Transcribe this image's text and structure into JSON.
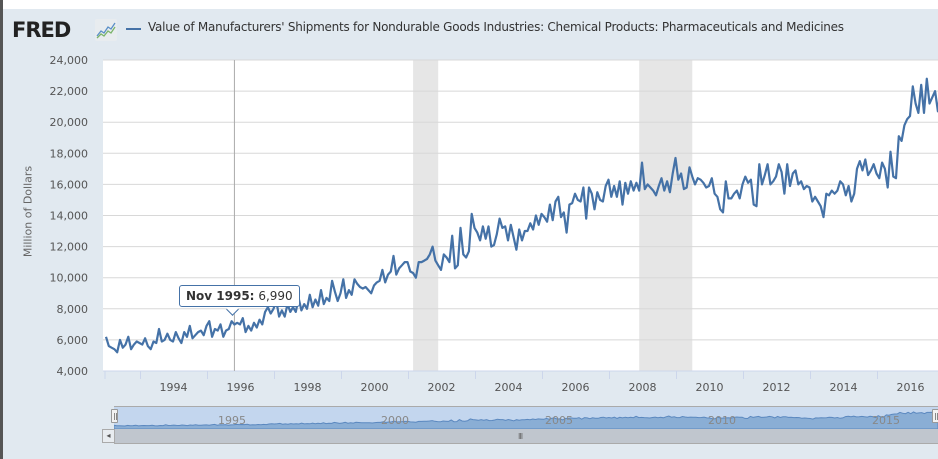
{
  "header": {
    "logo": "FRED",
    "logo_icon": "chart-line-icon",
    "series_title": "Value of Manufacturers' Shipments for Nondurable Goods Industries: Chemical Products: Pharmaceuticals and Medicines",
    "series_color": "#4572a7"
  },
  "tooltip": {
    "date": "Nov 1995:",
    "value": "6,990"
  },
  "navigator": {
    "labels": [
      "1995",
      "2000",
      "2005",
      "2010",
      "2015"
    ],
    "scroll_left_icon": "◂",
    "grip": "III"
  },
  "chart_data": {
    "type": "line",
    "title": "Value of Manufacturers' Shipments for Nondurable Goods Industries: Chemical Products: Pharmaceuticals and Medicines",
    "xlabel": "",
    "ylabel": "Million of Dollars",
    "ylim": [
      4000,
      24000
    ],
    "xlim": [
      "1992-01",
      "2016-10"
    ],
    "y_ticks": [
      "4,000",
      "6,000",
      "8,000",
      "10,000",
      "12,000",
      "14,000",
      "16,000",
      "18,000",
      "20,000",
      "22,000",
      "24,000"
    ],
    "y_tick_values": [
      4000,
      6000,
      8000,
      10000,
      12000,
      14000,
      16000,
      18000,
      20000,
      22000,
      24000
    ],
    "x_ticks": [
      "1994",
      "1996",
      "1998",
      "2000",
      "2002",
      "2004",
      "2006",
      "2008",
      "2010",
      "2012",
      "2014",
      "2016"
    ],
    "grid": true,
    "legend": "top-left",
    "recessions": [
      {
        "start": "2001-03",
        "end": "2001-11"
      },
      {
        "start": "2007-12",
        "end": "2009-06"
      }
    ],
    "highlight": {
      "date": "1995-11",
      "value": 6990
    },
    "start": "1992-01",
    "frequency": "monthly",
    "series": [
      {
        "name": "Pharmaceuticals and Medicines",
        "color": "#4572a7",
        "values": [
          6200,
          5600,
          5500,
          5400,
          5200,
          6000,
          5500,
          5700,
          6200,
          5400,
          5700,
          5900,
          5800,
          5700,
          6100,
          5600,
          5400,
          5900,
          5800,
          6700,
          5900,
          6000,
          6400,
          6000,
          5900,
          6500,
          6100,
          5800,
          6500,
          6200,
          6900,
          6100,
          6300,
          6500,
          6600,
          6300,
          6900,
          7200,
          6200,
          6700,
          6600,
          7000,
          6200,
          6600,
          6700,
          7200,
          6990,
          7100,
          7000,
          7400,
          6500,
          6900,
          6600,
          7100,
          6800,
          7300,
          7000,
          7800,
          8100,
          7700,
          8000,
          8500,
          7500,
          7900,
          7500,
          8300,
          7800,
          8100,
          7800,
          8700,
          7900,
          8300,
          8000,
          8900,
          8100,
          8600,
          8200,
          9200,
          8300,
          8700,
          8500,
          9800,
          9100,
          8500,
          9000,
          9900,
          8700,
          9200,
          8900,
          9900,
          9600,
          9400,
          9300,
          9400,
          9200,
          9000,
          9500,
          9700,
          9800,
          10500,
          9700,
          10200,
          10400,
          11400,
          10200,
          10600,
          10800,
          11000,
          11000,
          10400,
          10300,
          10000,
          11000,
          11000,
          11100,
          11200,
          11500,
          12000,
          11100,
          10800,
          10500,
          11500,
          11300,
          11000,
          12700,
          10600,
          10800,
          13200,
          11500,
          11300,
          11700,
          14100,
          13200,
          12900,
          12400,
          13300,
          12500,
          13300,
          12000,
          12100,
          12800,
          13800,
          13200,
          13300,
          12400,
          13400,
          12600,
          11800,
          13100,
          12400,
          13000,
          13000,
          13500,
          13100,
          14000,
          13400,
          14100,
          13900,
          13600,
          14700,
          13700,
          14900,
          15200,
          13900,
          14200,
          12900,
          14700,
          14800,
          15400,
          15000,
          14900,
          15800,
          13800,
          15800,
          15400,
          14400,
          15500,
          15000,
          14900,
          15900,
          16300,
          15200,
          15900,
          15200,
          16200,
          14700,
          16100,
          15400,
          16200,
          15600,
          16100,
          15600,
          17400,
          15700,
          16000,
          15800,
          15600,
          15300,
          15900,
          16400,
          15600,
          16200,
          15500,
          16700,
          17700,
          16300,
          16700,
          15700,
          15800,
          17100,
          16500,
          16000,
          16400,
          16300,
          16100,
          15800,
          15900,
          16400,
          15400,
          15200,
          14400,
          14200,
          16200,
          15100,
          15100,
          15400,
          15600,
          15100,
          16000,
          16500,
          16100,
          16300,
          14700,
          14600,
          17300,
          16000,
          16600,
          17300,
          16000,
          16200,
          16500,
          17300,
          16800,
          15400,
          17300,
          15900,
          16700,
          16900,
          16000,
          16200,
          15700,
          15900,
          15800,
          14900,
          15200,
          14900,
          14600,
          13900,
          15400,
          15300,
          15600,
          15400,
          15600,
          16200,
          16000,
          15300,
          15900,
          14900,
          15400,
          17000,
          17500,
          16900,
          17600,
          16600,
          16900,
          17300,
          16700,
          16400,
          17400,
          17000,
          15800,
          18100,
          16500,
          16400,
          19100,
          18800,
          19800,
          20200,
          20400,
          22300,
          21200,
          20600,
          22400,
          20600,
          22800,
          21200,
          21600,
          22000,
          20700,
          22200,
          22300,
          22400,
          21700,
          21800
        ]
      }
    ]
  }
}
